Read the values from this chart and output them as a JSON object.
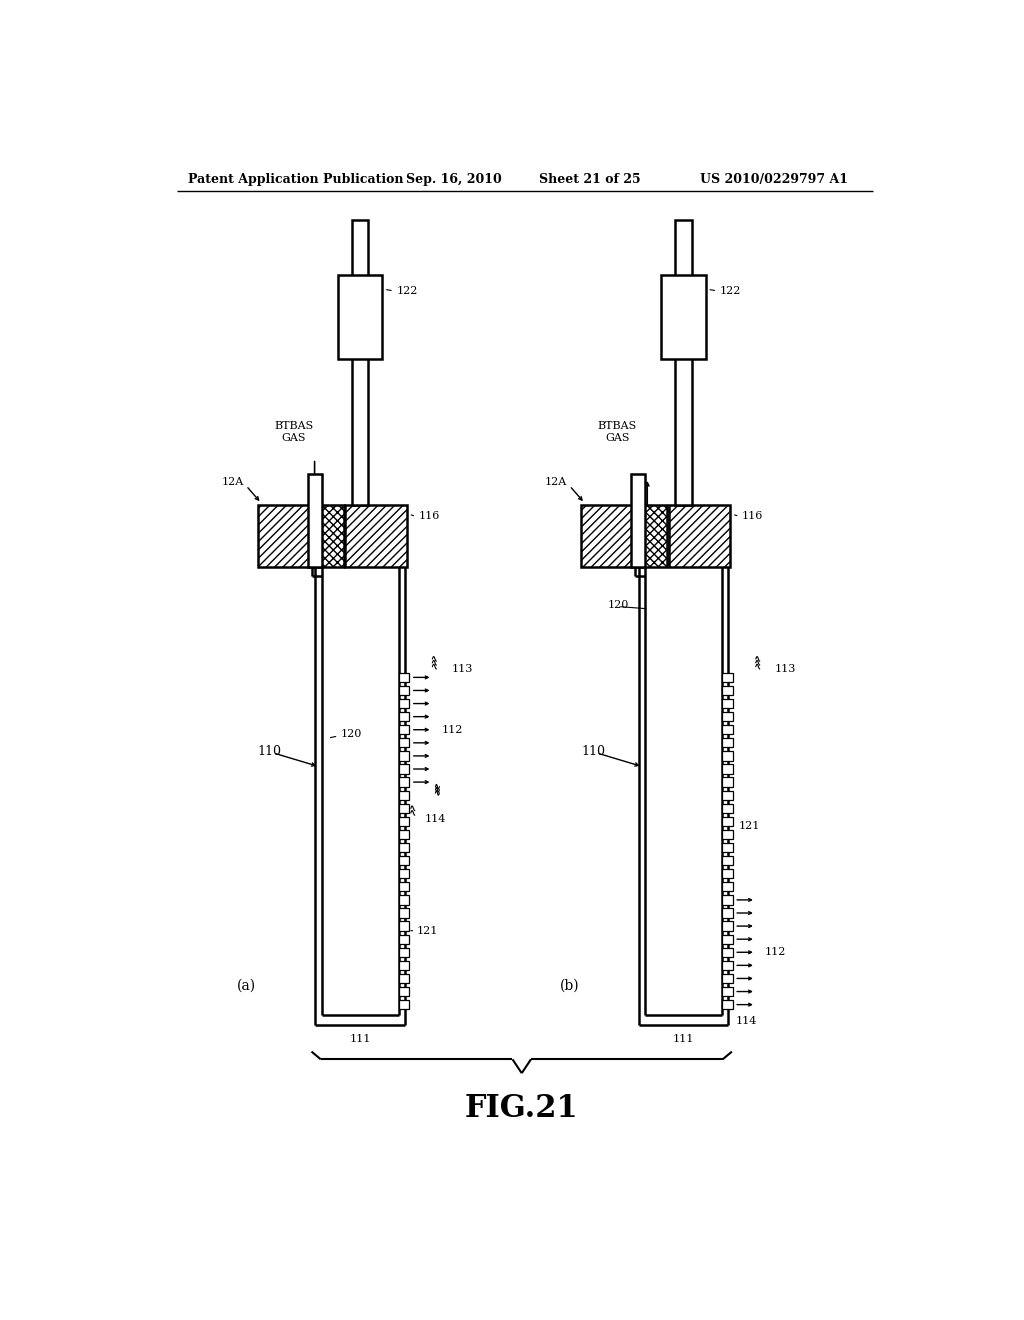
{
  "bg_color": "#ffffff",
  "header_left": "Patent Application Publication",
  "header_mid": "Sep. 16, 2010",
  "header_right_sheet": "Sheet 21 of 25",
  "header_right_patent": "US 2010/0229797 A1",
  "fig_label": "FIG.21",
  "subfig_a": "(a)",
  "subfig_b": "(b)",
  "line_color": "#000000"
}
